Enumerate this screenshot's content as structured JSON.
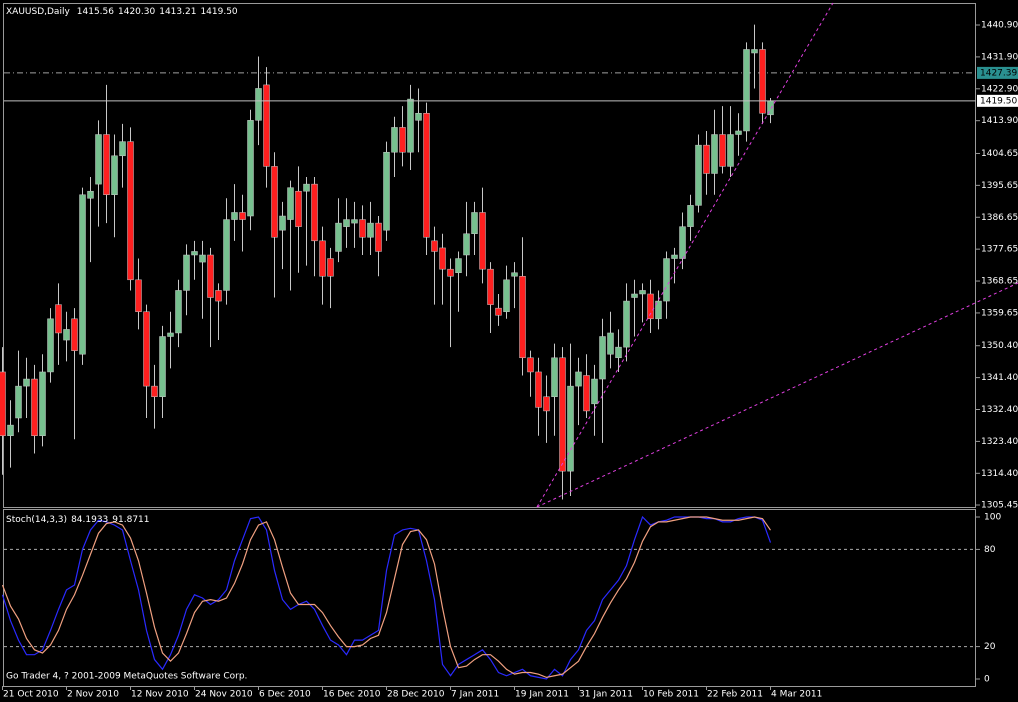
{
  "chart_data": [
    {
      "type": "candlestick",
      "title": "XAUUSD,Daily",
      "last_labels": {
        "open": "1415.56",
        "high": "1420.30",
        "low": "1413.21",
        "close": "1419.50"
      },
      "categories": [
        "21 Oct 2010",
        null,
        null,
        null,
        null,
        null,
        null,
        null,
        "2 Nov 2010",
        null,
        null,
        null,
        null,
        null,
        null,
        null,
        "12 Nov 2010",
        null,
        null,
        null,
        null,
        null,
        null,
        null,
        "24 Nov 2010",
        null,
        null,
        null,
        null,
        null,
        null,
        null,
        "6 Dec 2010",
        null,
        null,
        null,
        null,
        null,
        null,
        null,
        "16 Dec 2010",
        null,
        null,
        null,
        null,
        null,
        null,
        null,
        "28 Dec 2010",
        null,
        null,
        null,
        null,
        null,
        null,
        null,
        "7 Jan 2011",
        null,
        null,
        null,
        null,
        null,
        null,
        null,
        "19 Jan 2011",
        null,
        null,
        null,
        null,
        null,
        null,
        null,
        "31 Jan 2011",
        null,
        null,
        null,
        null,
        null,
        null,
        null,
        "10 Feb 2011",
        null,
        null,
        null,
        null,
        null,
        null,
        null,
        "22 Feb 2011",
        null,
        null,
        null,
        null,
        null,
        null,
        null,
        "4 Mar 2011"
      ],
      "open": [
        1343,
        1325,
        1330,
        1339,
        1341,
        1325,
        1343,
        1362,
        1352,
        1358,
        1348,
        1392,
        1396,
        1410,
        1393,
        1404,
        1408,
        1369,
        1360,
        1339,
        1336,
        1353,
        1354,
        1366,
        1376,
        1374,
        1376,
        1366,
        1366,
        1386,
        1388,
        1387,
        1414,
        1424,
        1401,
        1383,
        1386,
        1394,
        1394,
        1396,
        1380,
        1375,
        1377,
        1384,
        1385,
        1386,
        1381,
        1385,
        1383,
        1405,
        1412,
        1405,
        1414,
        1416,
        1380,
        1378,
        1372,
        1371,
        1376,
        1382,
        1388,
        1372,
        1361,
        1360,
        1370,
        1370,
        1347,
        1343,
        1336,
        1336,
        1347,
        1315,
        1339,
        1342,
        1334,
        1341,
        1348,
        1347,
        1350,
        1364,
        1365,
        1365,
        1358,
        1363,
        1375,
        1375,
        1384,
        1390,
        1407,
        1399,
        1410,
        1401,
        1410,
        1411,
        1433,
        1434,
        1415.56
      ],
      "high": [
        1350,
        1335,
        1349,
        1347,
        1345,
        1348,
        1361,
        1368,
        1360,
        1361,
        1395,
        1398,
        1414,
        1424,
        1410,
        1413,
        1412,
        1375,
        1362,
        1345,
        1356,
        1360,
        1369,
        1379,
        1380,
        1380,
        1378,
        1368,
        1392,
        1396,
        1393,
        1417,
        1432,
        1429,
        1405,
        1391,
        1397,
        1401,
        1398,
        1398,
        1384,
        1378,
        1392,
        1392,
        1391,
        1390,
        1391,
        1387,
        1408,
        1415,
        1418,
        1424,
        1423,
        1419,
        1384,
        1382,
        1375,
        1377,
        1391,
        1391,
        1395,
        1374,
        1365,
        1373,
        1374,
        1381,
        1349,
        1347,
        1342,
        1351,
        1350,
        1351,
        1347,
        1348,
        1345,
        1358,
        1360,
        1355,
        1368,
        1369,
        1368,
        1369,
        1366,
        1377,
        1378,
        1388,
        1393,
        1410,
        1411,
        1417,
        1418,
        1418,
        1416,
        1436,
        1441,
        1436,
        1420.3
      ],
      "low": [
        1314,
        1316,
        1326,
        1330,
        1320,
        1322,
        1340,
        1345,
        1346,
        1324,
        1345,
        1374,
        1384,
        1385,
        1381,
        1395,
        1366,
        1355,
        1330,
        1327,
        1330,
        1344,
        1350,
        1359,
        1369,
        1358,
        1350,
        1352,
        1362,
        1380,
        1377,
        1383,
        1407,
        1395,
        1364,
        1372,
        1366,
        1371,
        1373,
        1370,
        1362,
        1361,
        1374,
        1378,
        1378,
        1376,
        1376,
        1370,
        1380,
        1398,
        1401,
        1400,
        1405,
        1376,
        1362,
        1362,
        1350,
        1360,
        1370,
        1376,
        1368,
        1354,
        1356,
        1358,
        1361,
        1342,
        1336,
        1325,
        1323,
        1325,
        1307,
        1308,
        1328,
        1330,
        1325,
        1323,
        1344,
        1343,
        1346,
        1353,
        1357,
        1354,
        1355,
        1358,
        1368,
        1372,
        1380,
        1388,
        1393,
        1393,
        1399,
        1398,
        1404,
        1408,
        1423,
        1413,
        1413.21
      ],
      "close": [
        1325,
        1328,
        1339,
        1341,
        1325,
        1343,
        1358,
        1354,
        1355,
        1349,
        1393,
        1394,
        1410,
        1393,
        1404,
        1408,
        1369,
        1360,
        1339,
        1336,
        1353,
        1354,
        1366,
        1376,
        1377,
        1376,
        1364,
        1363,
        1386,
        1388,
        1386,
        1414,
        1423,
        1401,
        1381,
        1387,
        1395,
        1384,
        1396,
        1380,
        1370,
        1370,
        1385,
        1386,
        1386,
        1381,
        1385,
        1377,
        1405,
        1412,
        1405,
        1420,
        1416,
        1381,
        1377,
        1372,
        1370,
        1375,
        1382,
        1388,
        1372,
        1362,
        1359,
        1369,
        1371,
        1347,
        1343,
        1333,
        1332,
        1347,
        1315,
        1339,
        1343,
        1332,
        1341,
        1353,
        1354,
        1350,
        1363,
        1365,
        1366,
        1358,
        1363,
        1375,
        1376,
        1384,
        1390,
        1407,
        1399,
        1410,
        1401,
        1410,
        1411,
        1434,
        1434,
        1416,
        1419.5
      ],
      "up_color": "#77c08f",
      "down_color": "#ff2020",
      "wick_color": "#c8c8c8",
      "levels": [
        1427.39
      ],
      "level_color": "#2a9090",
      "ylim": [
        1304.89,
        1447.11
      ],
      "yticks": [
        {
          "value": 1440.9,
          "label": "1440.90"
        },
        {
          "value": 1431.9,
          "label": "1431.90"
        },
        {
          "value": 1422.9,
          "label": "1422.90"
        },
        {
          "value": 1413.9,
          "label": "1413.90"
        },
        1404.65,
        1395.65,
        1386.65,
        1377.65,
        1368.65,
        1359.65,
        {
          "value": 1350.4,
          "label": "1350.40"
        },
        {
          "value": 1341.4,
          "label": "1341.40"
        },
        {
          "value": 1332.4,
          "label": "1332.40"
        },
        {
          "value": 1323.4,
          "label": "1323.40"
        },
        {
          "value": 1314.4,
          "label": "1314.40"
        },
        1305.45
      ],
      "grid": false
    },
    {
      "type": "line",
      "title": "Stoch(14,3,3)",
      "annotation": "Go Trader 4, ? 2001-2009 MetaQuotes Software Corp.",
      "series": [
        {
          "color": "#2a2aff",
          "values": [
            52,
            36,
            24,
            15,
            15,
            18,
            30,
            43,
            55,
            58,
            80,
            92,
            98,
            97,
            95,
            92,
            73,
            55,
            30,
            12,
            6,
            15,
            27,
            43,
            52,
            50,
            46,
            49,
            55,
            73,
            86,
            99,
            100,
            92,
            67,
            49,
            43,
            46,
            48,
            43,
            33,
            24,
            21,
            15,
            24,
            24,
            27,
            30,
            67,
            89,
            92,
            93,
            92,
            73,
            49,
            9,
            2,
            9,
            12,
            15,
            18,
            12,
            4,
            2,
            4,
            6,
            2,
            1,
            0,
            6,
            2,
            12,
            18,
            30,
            36,
            49,
            55,
            61,
            70,
            86,
            100,
            95,
            97,
            98,
            100,
            100,
            100,
            100,
            99,
            99,
            97,
            97,
            99,
            100,
            100,
            98,
            84.1933
          ]
        },
        {
          "color": "#f0a080",
          "values": [
            58,
            45,
            37,
            25,
            18,
            16,
            21,
            30,
            43,
            52,
            64,
            77,
            90,
            96,
            97,
            95,
            87,
            73,
            53,
            32,
            16,
            11,
            16,
            28,
            41,
            48,
            49,
            48,
            50,
            59,
            71,
            86,
            95,
            97,
            86,
            69,
            53,
            46,
            46,
            46,
            41,
            33,
            26,
            20,
            20,
            21,
            25,
            27,
            41,
            62,
            83,
            91,
            92,
            86,
            71,
            44,
            20,
            7,
            8,
            12,
            15,
            15,
            11,
            6,
            3,
            4,
            4,
            3,
            1,
            2,
            3,
            7,
            11,
            20,
            28,
            38,
            47,
            55,
            62,
            72,
            85,
            94,
            97,
            97,
            98,
            99,
            100,
            100,
            100,
            99,
            98,
            98,
            98,
            99,
            100,
            99,
            91.8711
          ]
        }
      ],
      "levels": [
        20,
        80
      ],
      "level_color": "#aaaaaa",
      "ylim": [
        -4.32,
        104.94
      ],
      "yticks": [
        0,
        20,
        80,
        100
      ]
    }
  ]
}
